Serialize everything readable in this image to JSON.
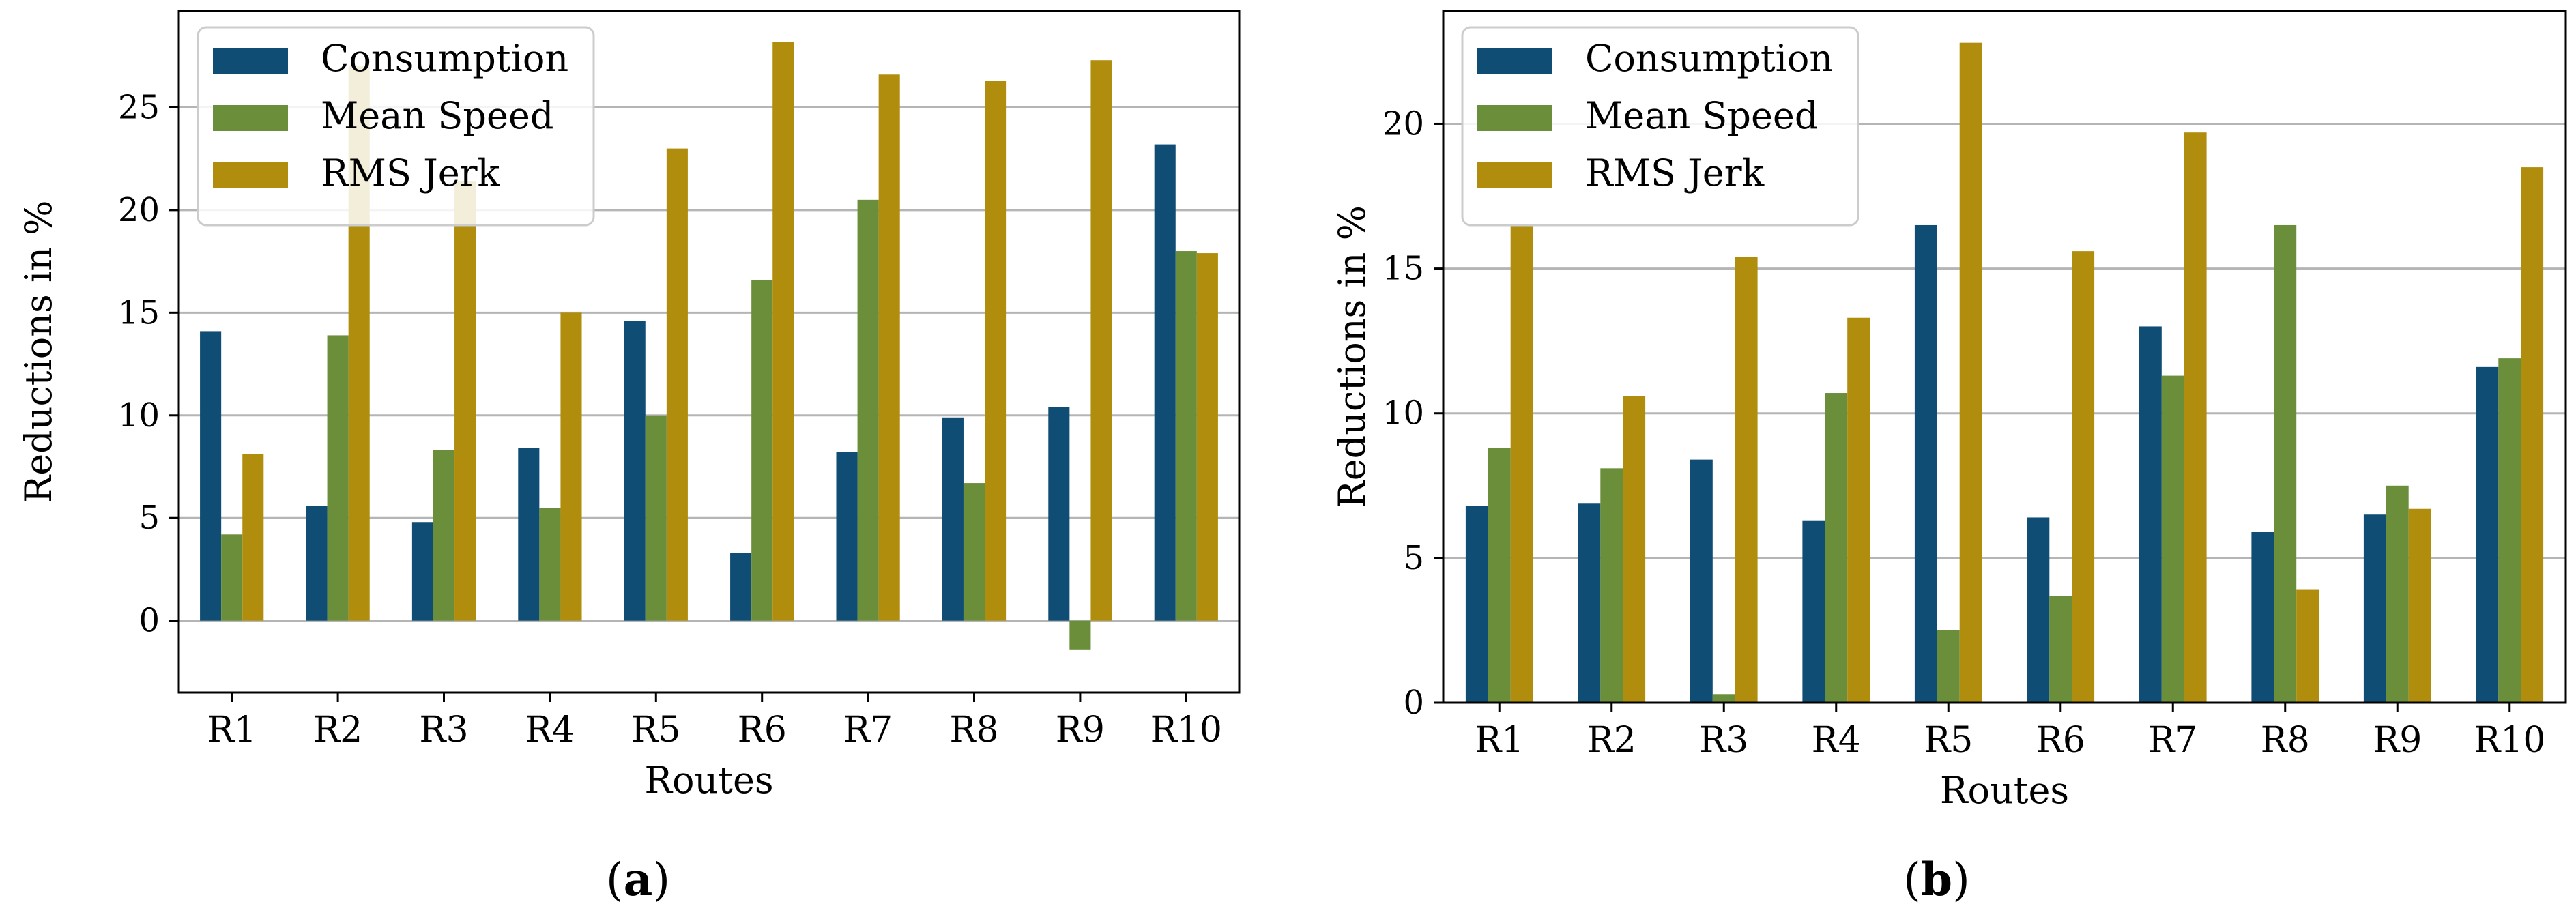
{
  "colors": {
    "consumption": "#0f4d74",
    "mean_speed": "#6b8e3a",
    "rms_jerk": "#b08d0c",
    "grid": "#b5b5b5",
    "axis": "#000000"
  },
  "chart_data": [
    {
      "type": "bar",
      "panel_label": "(a)",
      "xlabel": "Routes",
      "ylabel": "Reductions in %",
      "ylim": [
        -3.5,
        29.7
      ],
      "yticks": [
        0,
        5,
        10,
        15,
        20,
        25
      ],
      "grid": true,
      "legend_position": "top-left",
      "categories": [
        "R1",
        "R2",
        "R3",
        "R4",
        "R5",
        "R6",
        "R7",
        "R8",
        "R9",
        "R10"
      ],
      "series": [
        {
          "name": "Consumption",
          "values": [
            14.1,
            5.6,
            4.8,
            8.4,
            14.6,
            3.3,
            8.2,
            9.9,
            10.4,
            23.2
          ]
        },
        {
          "name": "Mean Speed",
          "values": [
            4.2,
            13.9,
            8.3,
            5.5,
            10.0,
            16.6,
            20.5,
            6.7,
            -1.4,
            18.0
          ]
        },
        {
          "name": "RMS Jerk",
          "values": [
            8.1,
            27.0,
            21.4,
            15.0,
            23.0,
            28.2,
            26.6,
            26.3,
            27.3,
            17.9
          ]
        }
      ]
    },
    {
      "type": "bar",
      "panel_label": "(b)",
      "xlabel": "Routes",
      "ylabel": "Reductions in %",
      "ylim": [
        0,
        23.9
      ],
      "yticks": [
        0,
        5,
        10,
        15,
        20
      ],
      "grid": true,
      "legend_position": "top-left",
      "categories": [
        "R1",
        "R2",
        "R3",
        "R4",
        "R5",
        "R6",
        "R7",
        "R8",
        "R9",
        "R10"
      ],
      "series": [
        {
          "name": "Consumption",
          "values": [
            6.8,
            6.9,
            8.4,
            6.3,
            16.5,
            6.4,
            13.0,
            5.9,
            6.5,
            11.6
          ]
        },
        {
          "name": "Mean Speed",
          "values": [
            8.8,
            8.1,
            0.3,
            10.7,
            2.5,
            3.7,
            11.3,
            16.5,
            7.5,
            11.9
          ]
        },
        {
          "name": "RMS Jerk",
          "values": [
            16.5,
            10.6,
            15.4,
            13.3,
            22.8,
            15.6,
            19.7,
            3.9,
            6.7,
            18.5
          ]
        }
      ]
    }
  ]
}
